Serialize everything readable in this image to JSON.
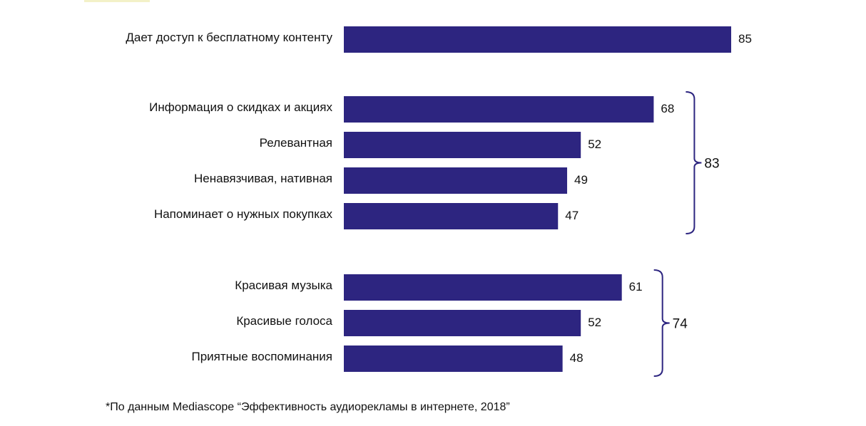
{
  "chart_data": {
    "type": "bar",
    "orientation": "horizontal",
    "title": "",
    "xlabel": "",
    "ylabel": "",
    "xlim": [
      0,
      85
    ],
    "grid": false,
    "legend": "none",
    "bar_color": "#2d2580",
    "categories": [
      "Дает доступ к бесплатному контенту",
      "Информация о скидках и акциях",
      "Релевантная",
      "Ненавязчивая, нативная",
      "Напоминает о нужных покупках",
      "Красивая музыка",
      "Красивые голоса",
      "Приятные воспоминания"
    ],
    "values": [
      85,
      68,
      52,
      49,
      47,
      61,
      52,
      48
    ],
    "groups": [
      {
        "categories": [
          "Дает доступ к бесплатному контенту"
        ],
        "total": null
      },
      {
        "categories": [
          "Информация о скидках и акциях",
          "Релевантная",
          "Ненавязчивая, нативная",
          "Напоминает о нужных покупках"
        ],
        "total": 83
      },
      {
        "categories": [
          "Красивая музыка",
          "Красивые голоса",
          "Приятные воспоминания"
        ],
        "total": 74
      }
    ]
  },
  "footnote": "*По данным Mediascope “Эффективность аудиорекламы в интернете, 2018”"
}
